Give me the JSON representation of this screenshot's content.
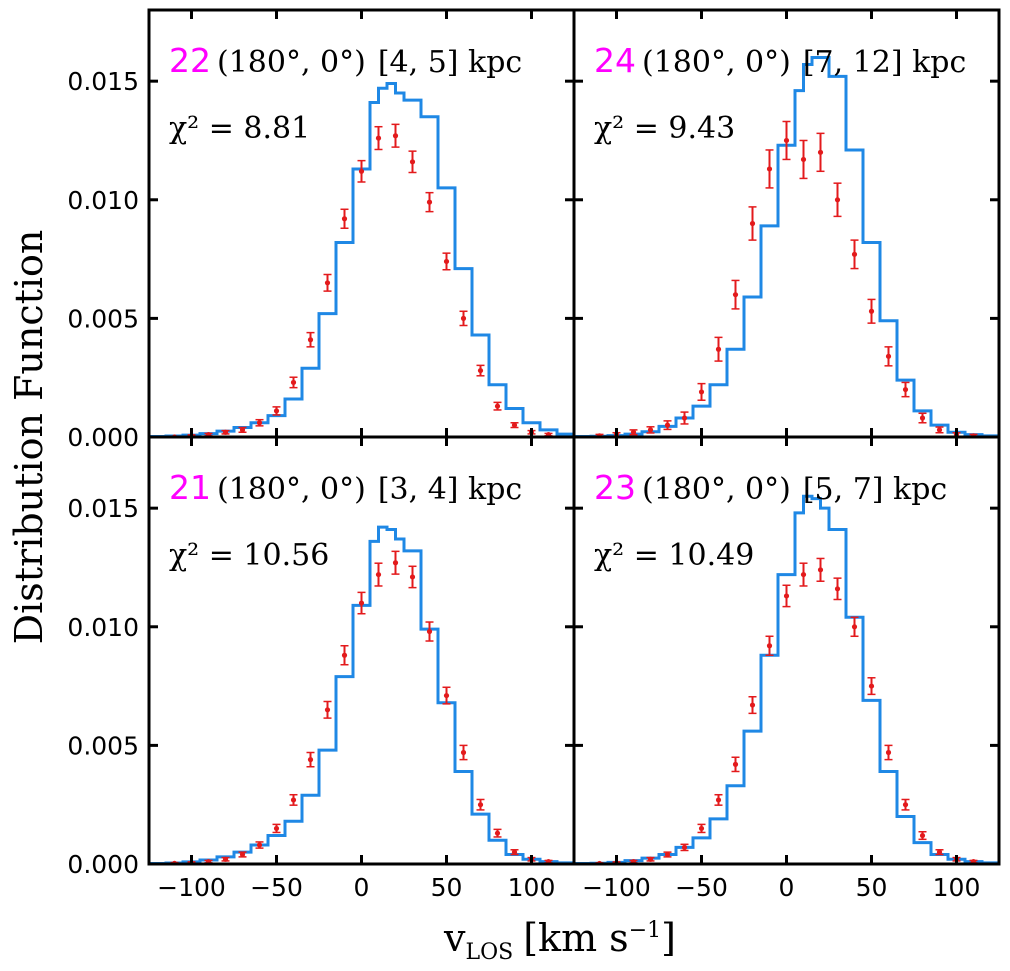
{
  "figure": {
    "ylabel": "Distribution Function",
    "xlabel_main": "v",
    "xlabel_sub": "LOS",
    "xlabel_unit": "[km s",
    "xlabel_unit_exp": "−1",
    "xlabel_unit_close": "]",
    "xlabel_full": "v_LOS [km s^-1]"
  },
  "chart_data": [
    {
      "type": "histogram+errorbar",
      "id": "22",
      "coords": "(180°, 0°)",
      "range": "[4, 5] kpc",
      "chi2_label": "χ² = 8.81",
      "chi2_value": "8.81",
      "xlim": [
        -125,
        125
      ],
      "ylim": [
        0,
        0.018
      ],
      "grid": false,
      "series": [
        {
          "kind": "model-histogram",
          "color": "#1f88e5",
          "bin_edges": [
            -125,
            -115,
            -105,
            -95,
            -85,
            -75,
            -65,
            -55,
            -45,
            -35,
            -25,
            -15,
            -5,
            5,
            10,
            15,
            20,
            25,
            35,
            45,
            55,
            65,
            75,
            85,
            95,
            105,
            115,
            125
          ],
          "values": [
            2e-05,
            4e-05,
            8e-05,
            0.00014,
            0.00025,
            0.0004,
            0.0006,
            0.0009,
            0.0016,
            0.0029,
            0.0052,
            0.0082,
            0.0113,
            0.0141,
            0.0147,
            0.0149,
            0.0145,
            0.0142,
            0.0135,
            0.0105,
            0.0071,
            0.0043,
            0.0022,
            0.0012,
            0.0006,
            0.0003,
            0.00012
          ]
        },
        {
          "kind": "data-points",
          "color": "#e31a1c",
          "x": [
            -110,
            -100,
            -90,
            -80,
            -70,
            -60,
            -50,
            -40,
            -30,
            -20,
            -10,
            0,
            10,
            20,
            30,
            40,
            50,
            60,
            70,
            80,
            90,
            100,
            110
          ],
          "y": [
            0.0,
            5e-05,
            0.0001,
            0.0002,
            0.0003,
            0.0006,
            0.0011,
            0.0023,
            0.0041,
            0.0065,
            0.0092,
            0.0112,
            0.0126,
            0.0127,
            0.0116,
            0.0099,
            0.0074,
            0.005,
            0.0028,
            0.0013,
            0.0005,
            0.0002,
            0.0001
          ],
          "yerr": [
            3e-05,
            4e-05,
            5e-05,
            7e-05,
            0.0001,
            0.00013,
            0.00017,
            0.00022,
            0.0003,
            0.00035,
            0.0004,
            0.00045,
            0.00048,
            0.00048,
            0.00045,
            0.0004,
            0.00035,
            0.0003,
            0.00022,
            0.00016,
            0.0001,
            7e-05,
            5e-05
          ]
        }
      ]
    },
    {
      "type": "histogram+errorbar",
      "id": "24",
      "coords": "(180°, 0°)",
      "range": "[7, 12] kpc",
      "chi2_label": "χ² = 9.43",
      "chi2_value": "9.43",
      "xlim": [
        -125,
        125
      ],
      "ylim": [
        0,
        0.018
      ],
      "grid": false,
      "series": [
        {
          "kind": "model-histogram",
          "color": "#1f88e5",
          "bin_edges": [
            -125,
            -115,
            -105,
            -95,
            -85,
            -75,
            -65,
            -55,
            -45,
            -35,
            -25,
            -15,
            -5,
            5,
            10,
            15,
            20,
            25,
            35,
            45,
            55,
            65,
            75,
            85,
            95,
            105,
            115,
            125
          ],
          "values": [
            2e-05,
            3e-05,
            6e-05,
            0.00012,
            0.00022,
            0.00045,
            0.0008,
            0.0013,
            0.0022,
            0.0037,
            0.0059,
            0.0089,
            0.0123,
            0.0146,
            0.0157,
            0.016,
            0.016,
            0.0152,
            0.0121,
            0.0082,
            0.0049,
            0.0024,
            0.0011,
            0.0005,
            0.0002,
            0.0001,
            5e-05
          ]
        },
        {
          "kind": "data-points",
          "color": "#e31a1c",
          "x": [
            -110,
            -100,
            -90,
            -80,
            -70,
            -60,
            -50,
            -40,
            -30,
            -20,
            -10,
            0,
            10,
            20,
            30,
            40,
            50,
            60,
            70,
            80,
            90,
            100,
            110
          ],
          "y": [
            5e-05,
            0.0001,
            0.0002,
            0.0003,
            0.0005,
            0.0008,
            0.0019,
            0.0037,
            0.006,
            0.009,
            0.0113,
            0.0125,
            0.0117,
            0.012,
            0.01,
            0.0077,
            0.0053,
            0.0034,
            0.002,
            0.0008,
            0.0003,
            0.0001,
            5e-05
          ],
          "yerr": [
            6e-05,
            8e-05,
            0.0001,
            0.00013,
            0.00018,
            0.00025,
            0.00035,
            0.0005,
            0.0006,
            0.0007,
            0.0008,
            0.0008,
            0.0008,
            0.0008,
            0.0007,
            0.0006,
            0.0005,
            0.0004,
            0.0003,
            0.0002,
            0.00012,
            8e-05,
            6e-05
          ]
        }
      ]
    },
    {
      "type": "histogram+errorbar",
      "id": "21",
      "coords": "(180°, 0°)",
      "range": "[3, 4] kpc",
      "chi2_label": "χ² = 10.56",
      "chi2_value": "10.56",
      "xlim": [
        -125,
        125
      ],
      "ylim": [
        0,
        0.018
      ],
      "grid": false,
      "series": [
        {
          "kind": "model-histogram",
          "color": "#1f88e5",
          "bin_edges": [
            -125,
            -115,
            -105,
            -95,
            -85,
            -75,
            -65,
            -55,
            -45,
            -35,
            -25,
            -15,
            -5,
            5,
            10,
            15,
            20,
            25,
            35,
            45,
            55,
            65,
            75,
            85,
            95,
            105,
            115,
            125
          ],
          "values": [
            2e-05,
            4e-05,
            9e-05,
            0.00017,
            0.0003,
            0.0005,
            0.0008,
            0.0012,
            0.0018,
            0.0029,
            0.0048,
            0.0079,
            0.0109,
            0.0136,
            0.0142,
            0.0141,
            0.0137,
            0.0132,
            0.0099,
            0.0068,
            0.0039,
            0.0021,
            0.001,
            0.0004,
            0.0002,
            0.0001,
            5e-05
          ]
        },
        {
          "kind": "data-points",
          "color": "#e31a1c",
          "x": [
            -110,
            -100,
            -90,
            -80,
            -70,
            -60,
            -50,
            -40,
            -30,
            -20,
            -10,
            0,
            10,
            20,
            30,
            40,
            50,
            60,
            70,
            80,
            90,
            100,
            110
          ],
          "y": [
            3e-05,
            5e-05,
            0.0001,
            0.0002,
            0.0004,
            0.0008,
            0.0015,
            0.0027,
            0.0044,
            0.0065,
            0.0088,
            0.011,
            0.0122,
            0.0127,
            0.0121,
            0.0098,
            0.0071,
            0.0047,
            0.0025,
            0.0013,
            0.0005,
            0.0002,
            0.0001
          ],
          "yerr": [
            3e-05,
            4e-05,
            5e-05,
            7e-05,
            0.0001,
            0.00013,
            0.00017,
            0.00022,
            0.0003,
            0.00035,
            0.0004,
            0.00045,
            0.00048,
            0.00048,
            0.00045,
            0.0004,
            0.00035,
            0.0003,
            0.00022,
            0.00016,
            0.0001,
            7e-05,
            5e-05
          ]
        }
      ]
    },
    {
      "type": "histogram+errorbar",
      "id": "23",
      "coords": "(180°, 0°)",
      "range": "[5, 7] kpc",
      "chi2_label": "χ² = 10.49",
      "chi2_value": "10.49",
      "xlim": [
        -125,
        125
      ],
      "ylim": [
        0,
        0.018
      ],
      "grid": false,
      "series": [
        {
          "kind": "model-histogram",
          "color": "#1f88e5",
          "bin_edges": [
            -125,
            -115,
            -105,
            -95,
            -85,
            -75,
            -65,
            -55,
            -45,
            -35,
            -25,
            -15,
            -5,
            5,
            10,
            15,
            20,
            25,
            35,
            45,
            55,
            65,
            75,
            85,
            95,
            105,
            115,
            125
          ],
          "values": [
            2e-05,
            3e-05,
            7e-05,
            0.00014,
            0.00025,
            0.0004,
            0.0007,
            0.0011,
            0.0019,
            0.0033,
            0.0056,
            0.0088,
            0.0122,
            0.0148,
            0.0155,
            0.0154,
            0.015,
            0.0141,
            0.0104,
            0.0069,
            0.0039,
            0.002,
            0.0009,
            0.0004,
            0.0002,
            0.0001,
            5e-05
          ]
        },
        {
          "kind": "data-points",
          "color": "#e31a1c",
          "x": [
            -110,
            -100,
            -90,
            -80,
            -70,
            -60,
            -50,
            -40,
            -30,
            -20,
            -10,
            0,
            10,
            20,
            30,
            40,
            50,
            60,
            70,
            80,
            90,
            100,
            110
          ],
          "y": [
            2e-05,
            5e-05,
            0.0001,
            0.0002,
            0.0004,
            0.0007,
            0.0015,
            0.0027,
            0.0042,
            0.0067,
            0.0092,
            0.0113,
            0.0122,
            0.0124,
            0.0116,
            0.01,
            0.0075,
            0.0047,
            0.0025,
            0.0012,
            0.0005,
            0.0002,
            0.0001
          ],
          "yerr": [
            3e-05,
            4e-05,
            5e-05,
            7e-05,
            0.0001,
            0.00013,
            0.00017,
            0.00022,
            0.0003,
            0.00035,
            0.0004,
            0.00045,
            0.00048,
            0.00048,
            0.00045,
            0.0004,
            0.00035,
            0.0003,
            0.00022,
            0.00016,
            0.0001,
            7e-05,
            5e-05
          ]
        }
      ]
    }
  ],
  "axes": {
    "yticks": [
      0.0,
      0.005,
      0.01,
      0.015
    ],
    "ytick_labels": [
      "0.000",
      "0.005",
      "0.010",
      "0.015"
    ],
    "xticks": [
      -100,
      -50,
      0,
      50,
      100
    ],
    "xtick_labels": [
      "−100",
      "−50",
      "0",
      "50",
      "100"
    ]
  }
}
